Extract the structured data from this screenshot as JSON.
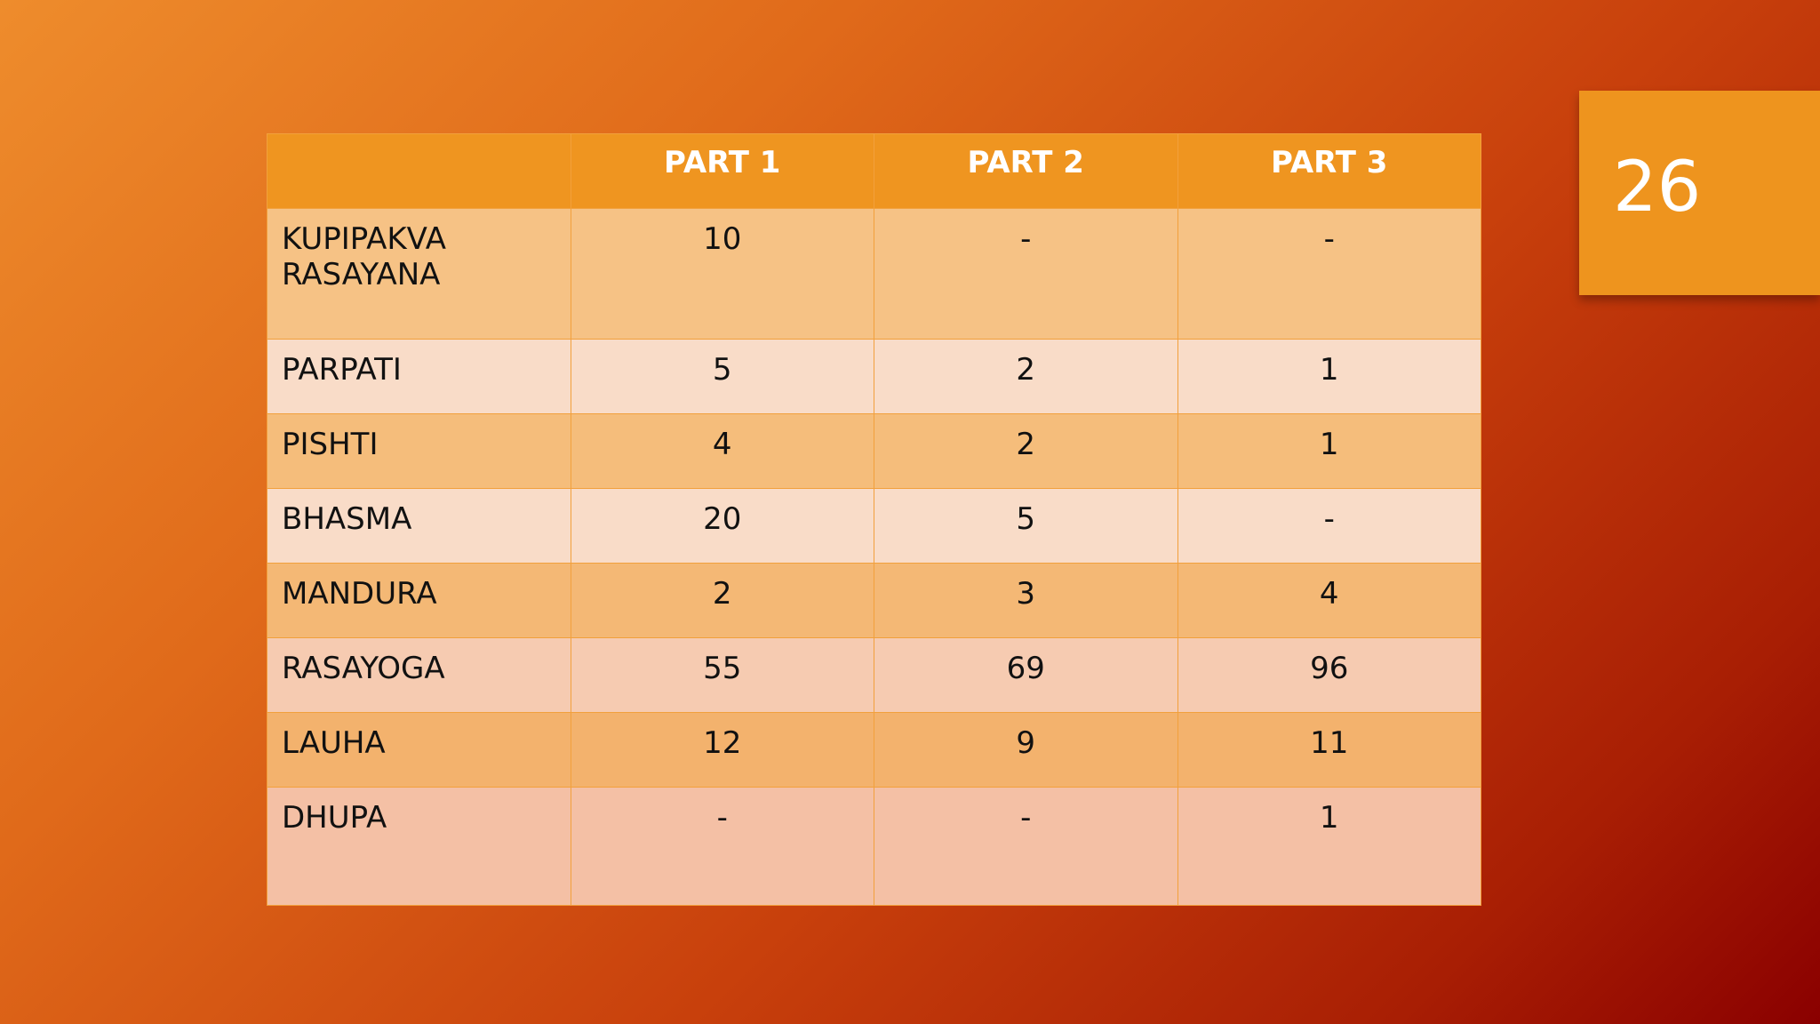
{
  "slide_number": "26",
  "table": {
    "header": [
      "PART 1",
      "PART 2",
      "PART 3"
    ],
    "rows": [
      [
        "KUPIPAKVA RASAYANA",
        10,
        "-",
        "-"
      ],
      [
        "PARPATI",
        5,
        2,
        1
      ],
      [
        "PISHTI",
        4,
        2,
        1
      ],
      [
        "BHASMA",
        20,
        5,
        "-"
      ],
      [
        "MANDURA",
        2,
        3,
        4
      ],
      [
        "RASAYOGA",
        55,
        69,
        96
      ],
      [
        "LAUHA",
        12,
        9,
        11
      ],
      [
        "DHUPA",
        "-",
        "-",
        1
      ]
    ]
  }
}
